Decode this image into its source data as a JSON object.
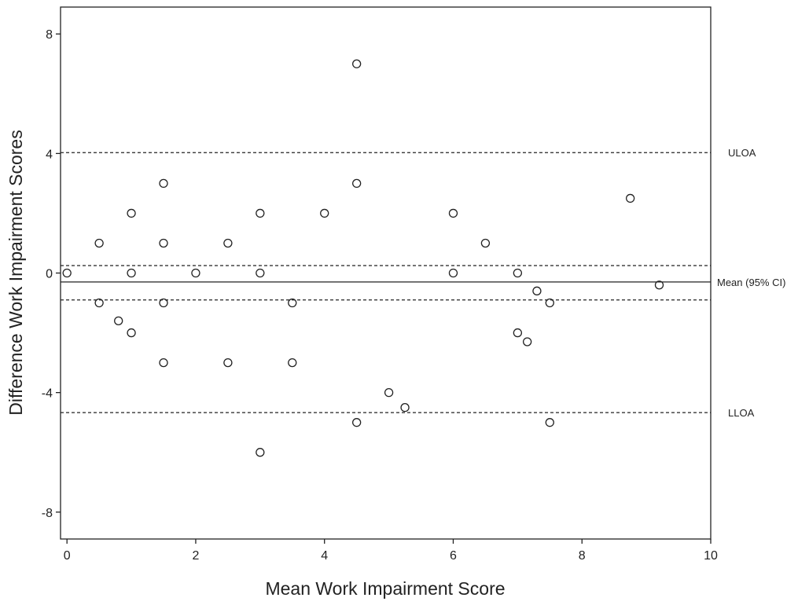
{
  "chart_data": {
    "type": "scatter",
    "title": "",
    "xlabel": "Mean Work Impairment Score",
    "ylabel": "Difference Work Impairment Scores",
    "xlim": [
      -0.1,
      10
    ],
    "ylim": [
      -8.9,
      8.9
    ],
    "xticks": [
      0,
      2,
      4,
      6,
      8,
      10
    ],
    "yticks": [
      -8,
      -4,
      0,
      4,
      8
    ],
    "xtick_labels": [
      "0",
      "2",
      "4",
      "6",
      "8",
      "10"
    ],
    "ytick_labels": [
      "-8",
      "-4",
      "0",
      "4",
      "8"
    ],
    "grid": false,
    "marker": "open-circle",
    "points": [
      [
        0,
        0
      ],
      [
        0.5,
        1
      ],
      [
        0.5,
        -1
      ],
      [
        0.8,
        -1.6
      ],
      [
        1,
        2
      ],
      [
        1,
        0
      ],
      [
        1,
        -2
      ],
      [
        1.5,
        3
      ],
      [
        1.5,
        1
      ],
      [
        1.5,
        -1
      ],
      [
        1.5,
        -3
      ],
      [
        2,
        0
      ],
      [
        2.5,
        1
      ],
      [
        2.5,
        -3
      ],
      [
        3,
        2
      ],
      [
        3,
        0
      ],
      [
        3,
        -6
      ],
      [
        3.5,
        -1
      ],
      [
        3.5,
        -3
      ],
      [
        4,
        2
      ],
      [
        4.5,
        7
      ],
      [
        4.5,
        3
      ],
      [
        4.5,
        -5
      ],
      [
        5,
        -4
      ],
      [
        5.25,
        -4.5
      ],
      [
        6,
        2
      ],
      [
        6,
        0
      ],
      [
        6.5,
        1
      ],
      [
        7,
        0
      ],
      [
        7,
        -2
      ],
      [
        7.15,
        -2.3
      ],
      [
        7.3,
        -0.6
      ],
      [
        7.5,
        -1
      ],
      [
        7.5,
        -5
      ],
      [
        8.75,
        2.5
      ],
      [
        9.2,
        -0.4
      ]
    ],
    "reference_lines": [
      {
        "name": "ULOA",
        "label": "ULOA",
        "y": 4.03,
        "style": "dashed"
      },
      {
        "name": "mean_upper_ci",
        "label": "",
        "y": 0.25,
        "style": "dashed"
      },
      {
        "name": "mean",
        "label": "Mean (95% CI)",
        "y": -0.3,
        "style": "solid"
      },
      {
        "name": "mean_lower_ci",
        "label": "",
        "y": -0.9,
        "style": "dashed"
      },
      {
        "name": "LLOA",
        "label": "LLOA",
        "y": -4.67,
        "style": "dashed"
      }
    ]
  }
}
